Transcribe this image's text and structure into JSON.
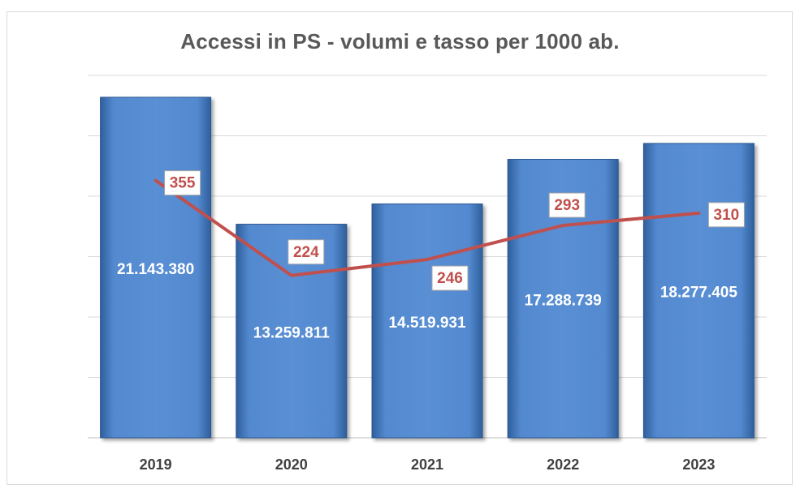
{
  "chart_data": {
    "type": "bar",
    "title": "Accessi in PS - volumi e tasso per 1000 ab.",
    "categories": [
      "2019",
      "2020",
      "2021",
      "2022",
      "2023"
    ],
    "series": [
      {
        "type": "bar",
        "values": [
          21143380,
          13259811,
          14519931,
          17288739,
          18277405
        ],
        "labels": [
          "21.143.380",
          "13.259.811",
          "14.519.931",
          "17.288.739",
          "18.277.405"
        ],
        "color": "#4f81c7"
      },
      {
        "type": "line",
        "values": [
          355,
          224,
          246,
          293,
          310
        ],
        "labels": [
          "355",
          "224",
          "246",
          "293",
          "310"
        ],
        "color": "#c0504d"
      }
    ],
    "bar_axis": {
      "ylim": [
        0,
        22500000
      ]
    },
    "line_axis": {
      "ylim": [
        0,
        500
      ]
    },
    "grid": true,
    "legend": "none",
    "xlabel": "",
    "ylabel": ""
  }
}
